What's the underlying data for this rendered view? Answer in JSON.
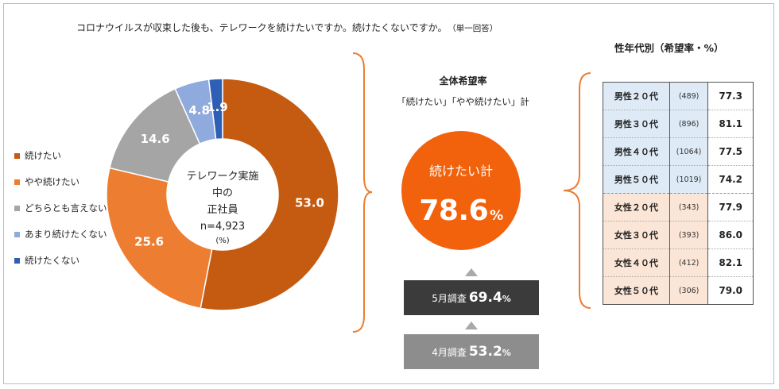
{
  "question": {
    "text": "コロナウイルスが収束した後も、テレワークを続けたいですか。続けたくないですか。",
    "note": "（単一回答）"
  },
  "chart_data": {
    "type": "pie",
    "donut": true,
    "unit": "%",
    "center_label": {
      "line1": "テレワーク実施中の",
      "line2": "正社員",
      "line3": "n=4,923",
      "line4": "(%)"
    },
    "categories": [
      "続けたい",
      "やや続けたい",
      "どちらとも言えない",
      "あまり続けたくない",
      "続けたくない"
    ],
    "values": [
      53.0,
      25.6,
      14.6,
      4.8,
      1.9
    ],
    "value_labels": [
      "53.0",
      "25.6",
      "14.6",
      "4.8",
      "1.9"
    ],
    "colors": [
      "#c55a11",
      "#ed7d31",
      "#a5a5a5",
      "#8faadc",
      "#2f5fb5"
    ],
    "legend_position": "left"
  },
  "overall": {
    "title": "全体希望率",
    "subtitle": "「続けたい」「やや続けたい」計",
    "circle_label": "続けたい計",
    "value": "78.6",
    "unit": "%",
    "color": "#f2620d"
  },
  "surveys": [
    {
      "label": "5月調査",
      "value": "69.4",
      "unit": "%",
      "color": "#3b3b3b"
    },
    {
      "label": "4月調査",
      "value": "53.2",
      "unit": "%",
      "color": "#8d8d8d"
    }
  ],
  "demographics": {
    "title": "性年代別（希望率・%）",
    "rows": [
      {
        "group": "男性２０代",
        "n": "(489)",
        "value": "77.3",
        "sex": "male"
      },
      {
        "group": "男性３０代",
        "n": "(896)",
        "value": "81.1",
        "sex": "male"
      },
      {
        "group": "男性４０代",
        "n": "(1064)",
        "value": "77.5",
        "sex": "male"
      },
      {
        "group": "男性５０代",
        "n": "(1019)",
        "value": "74.2",
        "sex": "male"
      },
      {
        "group": "女性２０代",
        "n": "(343)",
        "value": "77.9",
        "sex": "female"
      },
      {
        "group": "女性３０代",
        "n": "(393)",
        "value": "86.0",
        "sex": "female"
      },
      {
        "group": "女性４０代",
        "n": "(412)",
        "value": "82.1",
        "sex": "female"
      },
      {
        "group": "女性５０代",
        "n": "(306)",
        "value": "79.0",
        "sex": "female"
      }
    ]
  },
  "colors": {
    "bracket": "#ed7d31",
    "male_fill": "#deebf7",
    "female_fill": "#fbe5d6",
    "arrow": "#a9a9a9"
  }
}
